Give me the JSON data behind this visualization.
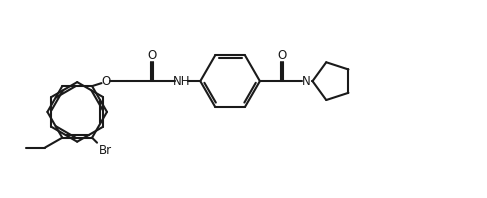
{
  "bg_color": "#ffffff",
  "line_color": "#1a1a1a",
  "line_width": 1.5,
  "font_size": 8.5,
  "figsize": [
    4.87,
    1.98
  ],
  "dpi": 100,
  "xlim": [
    0,
    9.74
  ],
  "ylim": [
    0,
    3.96
  ]
}
